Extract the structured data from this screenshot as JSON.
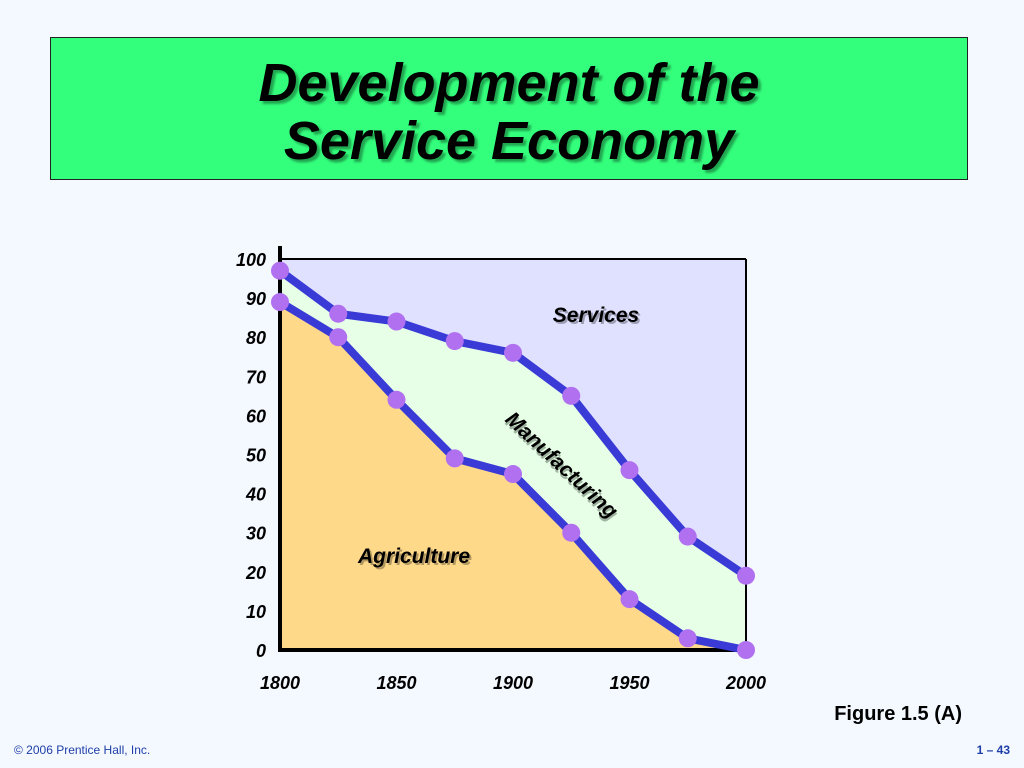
{
  "title": {
    "line1": "Development of the",
    "line2": "Service Economy"
  },
  "caption": "Figure 1.5 (A)",
  "footer": {
    "copyright": "© 2006 Prentice Hall, Inc.",
    "slide_number": "1 – 43"
  },
  "colors": {
    "title_bg": "#33ff7c",
    "services_area": "#e0e0ff",
    "manufacturing_area": "#e6ffe6",
    "agriculture_area": "#ffd98a",
    "line": "#3a3ad6",
    "marker": "#b070f0"
  },
  "chart_data": {
    "type": "area",
    "x": [
      1800,
      1825,
      1850,
      1875,
      1900,
      1925,
      1950,
      1975,
      2000
    ],
    "xticks": [
      1800,
      1850,
      1900,
      1950,
      2000
    ],
    "yticks": [
      0,
      10,
      20,
      30,
      40,
      50,
      60,
      70,
      80,
      90,
      100
    ],
    "xlim": [
      1800,
      2000
    ],
    "ylim": [
      0,
      100
    ],
    "series": [
      {
        "name": "Agriculture",
        "values": [
          89,
          80,
          64,
          49,
          45,
          30,
          13,
          3,
          0
        ]
      },
      {
        "name": "Manufacturing",
        "values": [
          8,
          6,
          20,
          30,
          31,
          35,
          33,
          26,
          19
        ]
      },
      {
        "name": "Services",
        "values": [
          3,
          14,
          16,
          21,
          24,
          35,
          54,
          71,
          81
        ]
      }
    ],
    "upper_boundary": [
      97,
      86,
      84,
      79,
      76,
      65,
      46,
      29,
      19
    ],
    "area_labels": [
      "Services",
      "Manufacturing",
      "Agriculture"
    ],
    "grid": false
  }
}
